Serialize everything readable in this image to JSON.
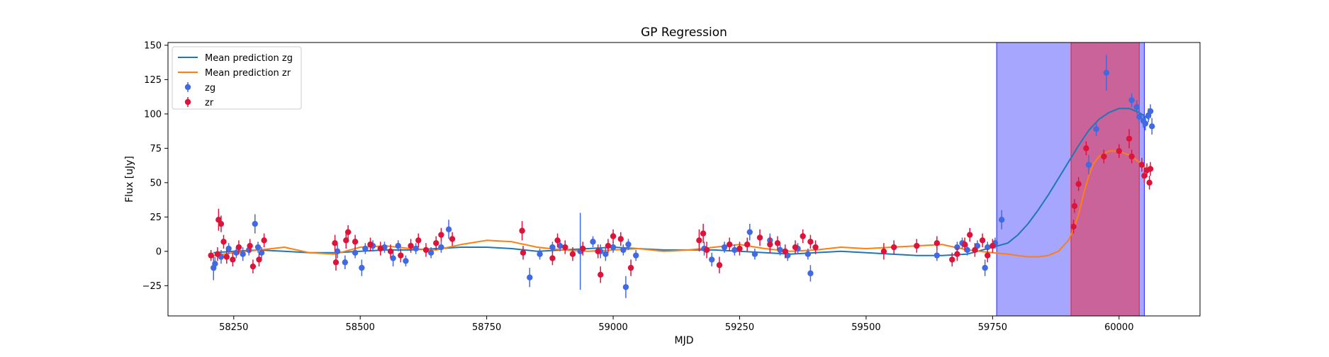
{
  "chart_data": {
    "type": "line",
    "title": "GP Regression",
    "xlabel": "MJD",
    "ylabel": "Flux [uJy]",
    "xlim": [
      58120,
      60160
    ],
    "ylim": [
      -47,
      152
    ],
    "xticks": [
      58250,
      58500,
      58750,
      59000,
      59250,
      59500,
      59750,
      60000
    ],
    "yticks": [
      -25,
      0,
      25,
      50,
      75,
      100,
      125,
      150
    ],
    "grid": false,
    "legend_position": "upper-left",
    "shaded_regions": [
      {
        "x0": 59758,
        "x1": 60050,
        "color": "#0000ff",
        "opacity": 0.35
      },
      {
        "x0": 59905,
        "x1": 60040,
        "color": "#ff0000",
        "opacity": 0.4
      }
    ],
    "lines": [
      {
        "name": "Mean prediction zg",
        "color": "#1f77b4",
        "x": [
          58210,
          58250,
          58300,
          58350,
          58400,
          58450,
          58500,
          58550,
          58600,
          58650,
          58700,
          58750,
          58800,
          58850,
          58900,
          58950,
          59000,
          59050,
          59100,
          59150,
          59200,
          59250,
          59300,
          59350,
          59400,
          59450,
          59500,
          59550,
          59600,
          59650,
          59700,
          59750,
          59780,
          59800,
          59820,
          59840,
          59860,
          59880,
          59900,
          59920,
          59940,
          59960,
          59980,
          60000,
          60020,
          60040,
          60060
        ],
        "y": [
          -1,
          0,
          1,
          0,
          -1,
          -1,
          0,
          1,
          1,
          2,
          3,
          3,
          2,
          0,
          1,
          2,
          3,
          2,
          1,
          1,
          1,
          0,
          -1,
          -2,
          -1,
          0,
          -1,
          -2,
          -3,
          -3,
          -2,
          3,
          6,
          12,
          20,
          30,
          41,
          53,
          65,
          77,
          88,
          96,
          101,
          104,
          104,
          101,
          96
        ]
      },
      {
        "name": "Mean prediction zr",
        "color": "#ff7f0e",
        "x": [
          58210,
          58250,
          58300,
          58350,
          58400,
          58450,
          58500,
          58550,
          58600,
          58650,
          58700,
          58750,
          58800,
          58850,
          58900,
          58950,
          59000,
          59050,
          59100,
          59150,
          59200,
          59250,
          59300,
          59350,
          59400,
          59450,
          59500,
          59550,
          59600,
          59650,
          59700,
          59750,
          59780,
          59800,
          59820,
          59840,
          59860,
          59880,
          59900,
          59910,
          59920,
          59930,
          59940,
          59950,
          59960,
          59980,
          60000,
          60020,
          60040,
          60060
        ],
        "y": [
          -3,
          -1,
          1,
          3,
          -1,
          -2,
          3,
          4,
          2,
          1,
          5,
          8,
          7,
          3,
          1,
          0,
          1,
          2,
          0,
          1,
          3,
          5,
          2,
          0,
          1,
          3,
          2,
          3,
          4,
          5,
          1,
          -1,
          -2,
          -3,
          -4,
          -4,
          -3,
          0,
          8,
          16,
          27,
          42,
          55,
          64,
          69,
          73,
          73,
          70,
          65,
          58
        ]
      }
    ],
    "series": [
      {
        "name": "zg",
        "color": "#4169e1",
        "points": [
          {
            "x": 58210,
            "y": -12,
            "err": 9
          },
          {
            "x": 58213,
            "y": -9,
            "err": 5
          },
          {
            "x": 58225,
            "y": -4,
            "err": 5
          },
          {
            "x": 58240,
            "y": 2,
            "err": 4
          },
          {
            "x": 58255,
            "y": -1,
            "err": 4
          },
          {
            "x": 58268,
            "y": -2,
            "err": 5
          },
          {
            "x": 58280,
            "y": 1,
            "err": 4
          },
          {
            "x": 58292,
            "y": 20,
            "err": 7
          },
          {
            "x": 58298,
            "y": 3,
            "err": 4
          },
          {
            "x": 58305,
            "y": -1,
            "err": 4
          },
          {
            "x": 58455,
            "y": 0,
            "err": 5
          },
          {
            "x": 58470,
            "y": -8,
            "err": 5
          },
          {
            "x": 58490,
            "y": -1,
            "err": 4
          },
          {
            "x": 58503,
            "y": -12,
            "err": 6
          },
          {
            "x": 58510,
            "y": 2,
            "err": 4
          },
          {
            "x": 58525,
            "y": 4,
            "err": 4
          },
          {
            "x": 58548,
            "y": 3,
            "err": 4
          },
          {
            "x": 58565,
            "y": -5,
            "err": 6
          },
          {
            "x": 58575,
            "y": 4,
            "err": 4
          },
          {
            "x": 58590,
            "y": -7,
            "err": 4
          },
          {
            "x": 58610,
            "y": 2,
            "err": 4
          },
          {
            "x": 58640,
            "y": -1,
            "err": 4
          },
          {
            "x": 58660,
            "y": 3,
            "err": 4
          },
          {
            "x": 58675,
            "y": 16,
            "err": 7
          },
          {
            "x": 58835,
            "y": -19,
            "err": 7
          },
          {
            "x": 58855,
            "y": -2,
            "err": 4
          },
          {
            "x": 58880,
            "y": 3,
            "err": 4
          },
          {
            "x": 58895,
            "y": 4,
            "err": 4
          },
          {
            "x": 58935,
            "y": 0,
            "err": 28
          },
          {
            "x": 58960,
            "y": 7,
            "err": 4
          },
          {
            "x": 58975,
            "y": 0,
            "err": 5
          },
          {
            "x": 58985,
            "y": -2,
            "err": 5
          },
          {
            "x": 59000,
            "y": 3,
            "err": 4
          },
          {
            "x": 59020,
            "y": 1,
            "err": 4
          },
          {
            "x": 59025,
            "y": -26,
            "err": 8
          },
          {
            "x": 59030,
            "y": 5,
            "err": 4
          },
          {
            "x": 59045,
            "y": -3,
            "err": 4
          },
          {
            "x": 59180,
            "y": 2,
            "err": 5
          },
          {
            "x": 59195,
            "y": -6,
            "err": 5
          },
          {
            "x": 59220,
            "y": 3,
            "err": 4
          },
          {
            "x": 59240,
            "y": 1,
            "err": 4
          },
          {
            "x": 59270,
            "y": 14,
            "err": 6
          },
          {
            "x": 59280,
            "y": -2,
            "err": 4
          },
          {
            "x": 59310,
            "y": 8,
            "err": 5
          },
          {
            "x": 59330,
            "y": 1,
            "err": 4
          },
          {
            "x": 59345,
            "y": -3,
            "err": 4
          },
          {
            "x": 59365,
            "y": 2,
            "err": 4
          },
          {
            "x": 59385,
            "y": -2,
            "err": 4
          },
          {
            "x": 59390,
            "y": -16,
            "err": 6
          },
          {
            "x": 59640,
            "y": -3,
            "err": 4
          },
          {
            "x": 59680,
            "y": 3,
            "err": 4
          },
          {
            "x": 59690,
            "y": 6,
            "err": 4
          },
          {
            "x": 59700,
            "y": 1,
            "err": 4
          },
          {
            "x": 59720,
            "y": 4,
            "err": 4
          },
          {
            "x": 59735,
            "y": -12,
            "err": 6
          },
          {
            "x": 59740,
            "y": 3,
            "err": 4
          },
          {
            "x": 59755,
            "y": 6,
            "err": 4
          },
          {
            "x": 59768,
            "y": 23,
            "err": 7
          },
          {
            "x": 59940,
            "y": 63,
            "err": 7
          },
          {
            "x": 59955,
            "y": 89,
            "err": 5
          },
          {
            "x": 59975,
            "y": 130,
            "err": 13
          },
          {
            "x": 60025,
            "y": 110,
            "err": 5
          },
          {
            "x": 60035,
            "y": 105,
            "err": 5
          },
          {
            "x": 60040,
            "y": 98,
            "err": 5
          },
          {
            "x": 60048,
            "y": 95,
            "err": 5
          },
          {
            "x": 60052,
            "y": 93,
            "err": 5
          },
          {
            "x": 60058,
            "y": 99,
            "err": 5
          },
          {
            "x": 60062,
            "y": 102,
            "err": 5
          },
          {
            "x": 60065,
            "y": 91,
            "err": 6
          }
        ]
      },
      {
        "name": "zr",
        "color": "#dc143c",
        "points": [
          {
            "x": 58205,
            "y": -3,
            "err": 4
          },
          {
            "x": 58218,
            "y": -2,
            "err": 5
          },
          {
            "x": 58220,
            "y": 23,
            "err": 8
          },
          {
            "x": 58225,
            "y": 20,
            "err": 6
          },
          {
            "x": 58230,
            "y": 7,
            "err": 5
          },
          {
            "x": 58236,
            "y": -4,
            "err": 5
          },
          {
            "x": 58248,
            "y": -6,
            "err": 5
          },
          {
            "x": 58260,
            "y": 3,
            "err": 5
          },
          {
            "x": 58282,
            "y": 4,
            "err": 5
          },
          {
            "x": 58288,
            "y": -11,
            "err": 5
          },
          {
            "x": 58300,
            "y": -6,
            "err": 5
          },
          {
            "x": 58310,
            "y": 8,
            "err": 5
          },
          {
            "x": 58450,
            "y": 6,
            "err": 6
          },
          {
            "x": 58452,
            "y": -8,
            "err": 6
          },
          {
            "x": 58472,
            "y": 8,
            "err": 6
          },
          {
            "x": 58476,
            "y": 14,
            "err": 5
          },
          {
            "x": 58490,
            "y": 7,
            "err": 5
          },
          {
            "x": 58520,
            "y": 5,
            "err": 5
          },
          {
            "x": 58540,
            "y": 2,
            "err": 5
          },
          {
            "x": 58560,
            "y": 0,
            "err": 5
          },
          {
            "x": 58580,
            "y": -3,
            "err": 5
          },
          {
            "x": 58600,
            "y": 4,
            "err": 5
          },
          {
            "x": 58615,
            "y": 8,
            "err": 5
          },
          {
            "x": 58630,
            "y": 1,
            "err": 5
          },
          {
            "x": 58650,
            "y": 6,
            "err": 5
          },
          {
            "x": 58660,
            "y": 12,
            "err": 5
          },
          {
            "x": 58682,
            "y": 9,
            "err": 5
          },
          {
            "x": 58820,
            "y": 15,
            "err": 7
          },
          {
            "x": 58822,
            "y": -1,
            "err": 5
          },
          {
            "x": 58880,
            "y": -5,
            "err": 5
          },
          {
            "x": 58890,
            "y": 8,
            "err": 5
          },
          {
            "x": 58905,
            "y": 3,
            "err": 5
          },
          {
            "x": 58920,
            "y": -2,
            "err": 5
          },
          {
            "x": 58940,
            "y": 2,
            "err": 5
          },
          {
            "x": 58970,
            "y": 0,
            "err": 5
          },
          {
            "x": 58975,
            "y": -17,
            "err": 6
          },
          {
            "x": 58990,
            "y": 4,
            "err": 5
          },
          {
            "x": 59000,
            "y": 11,
            "err": 5
          },
          {
            "x": 59015,
            "y": 9,
            "err": 5
          },
          {
            "x": 59035,
            "y": -12,
            "err": 6
          },
          {
            "x": 59170,
            "y": 8,
            "err": 8
          },
          {
            "x": 59178,
            "y": 13,
            "err": 7
          },
          {
            "x": 59185,
            "y": 1,
            "err": 6
          },
          {
            "x": 59210,
            "y": -10,
            "err": 6
          },
          {
            "x": 59230,
            "y": 5,
            "err": 5
          },
          {
            "x": 59250,
            "y": 2,
            "err": 5
          },
          {
            "x": 59265,
            "y": 5,
            "err": 5
          },
          {
            "x": 59290,
            "y": 10,
            "err": 6
          },
          {
            "x": 59310,
            "y": 5,
            "err": 6
          },
          {
            "x": 59325,
            "y": 6,
            "err": 5
          },
          {
            "x": 59340,
            "y": 0,
            "err": 5
          },
          {
            "x": 59360,
            "y": 3,
            "err": 5
          },
          {
            "x": 59375,
            "y": 11,
            "err": 5
          },
          {
            "x": 59390,
            "y": 7,
            "err": 5
          },
          {
            "x": 59400,
            "y": 3,
            "err": 5
          },
          {
            "x": 59535,
            "y": 0,
            "err": 6
          },
          {
            "x": 59555,
            "y": 3,
            "err": 5
          },
          {
            "x": 59600,
            "y": 4,
            "err": 5
          },
          {
            "x": 59640,
            "y": 6,
            "err": 5
          },
          {
            "x": 59670,
            "y": -6,
            "err": 5
          },
          {
            "x": 59680,
            "y": -2,
            "err": 5
          },
          {
            "x": 59695,
            "y": 5,
            "err": 5
          },
          {
            "x": 59705,
            "y": 12,
            "err": 5
          },
          {
            "x": 59715,
            "y": 1,
            "err": 5
          },
          {
            "x": 59730,
            "y": 8,
            "err": 5
          },
          {
            "x": 59740,
            "y": -3,
            "err": 5
          },
          {
            "x": 59750,
            "y": 4,
            "err": 5
          },
          {
            "x": 59910,
            "y": 18,
            "err": 5
          },
          {
            "x": 59912,
            "y": 33,
            "err": 5
          },
          {
            "x": 59920,
            "y": 49,
            "err": 5
          },
          {
            "x": 59935,
            "y": 75,
            "err": 5
          },
          {
            "x": 59970,
            "y": 69,
            "err": 5
          },
          {
            "x": 60000,
            "y": 73,
            "err": 5
          },
          {
            "x": 60020,
            "y": 82,
            "err": 7
          },
          {
            "x": 60025,
            "y": 69,
            "err": 5
          },
          {
            "x": 60045,
            "y": 63,
            "err": 5
          },
          {
            "x": 60050,
            "y": 55,
            "err": 5
          },
          {
            "x": 60055,
            "y": 59,
            "err": 5
          },
          {
            "x": 60060,
            "y": 50,
            "err": 5
          },
          {
            "x": 60062,
            "y": 60,
            "err": 5
          }
        ]
      }
    ]
  }
}
